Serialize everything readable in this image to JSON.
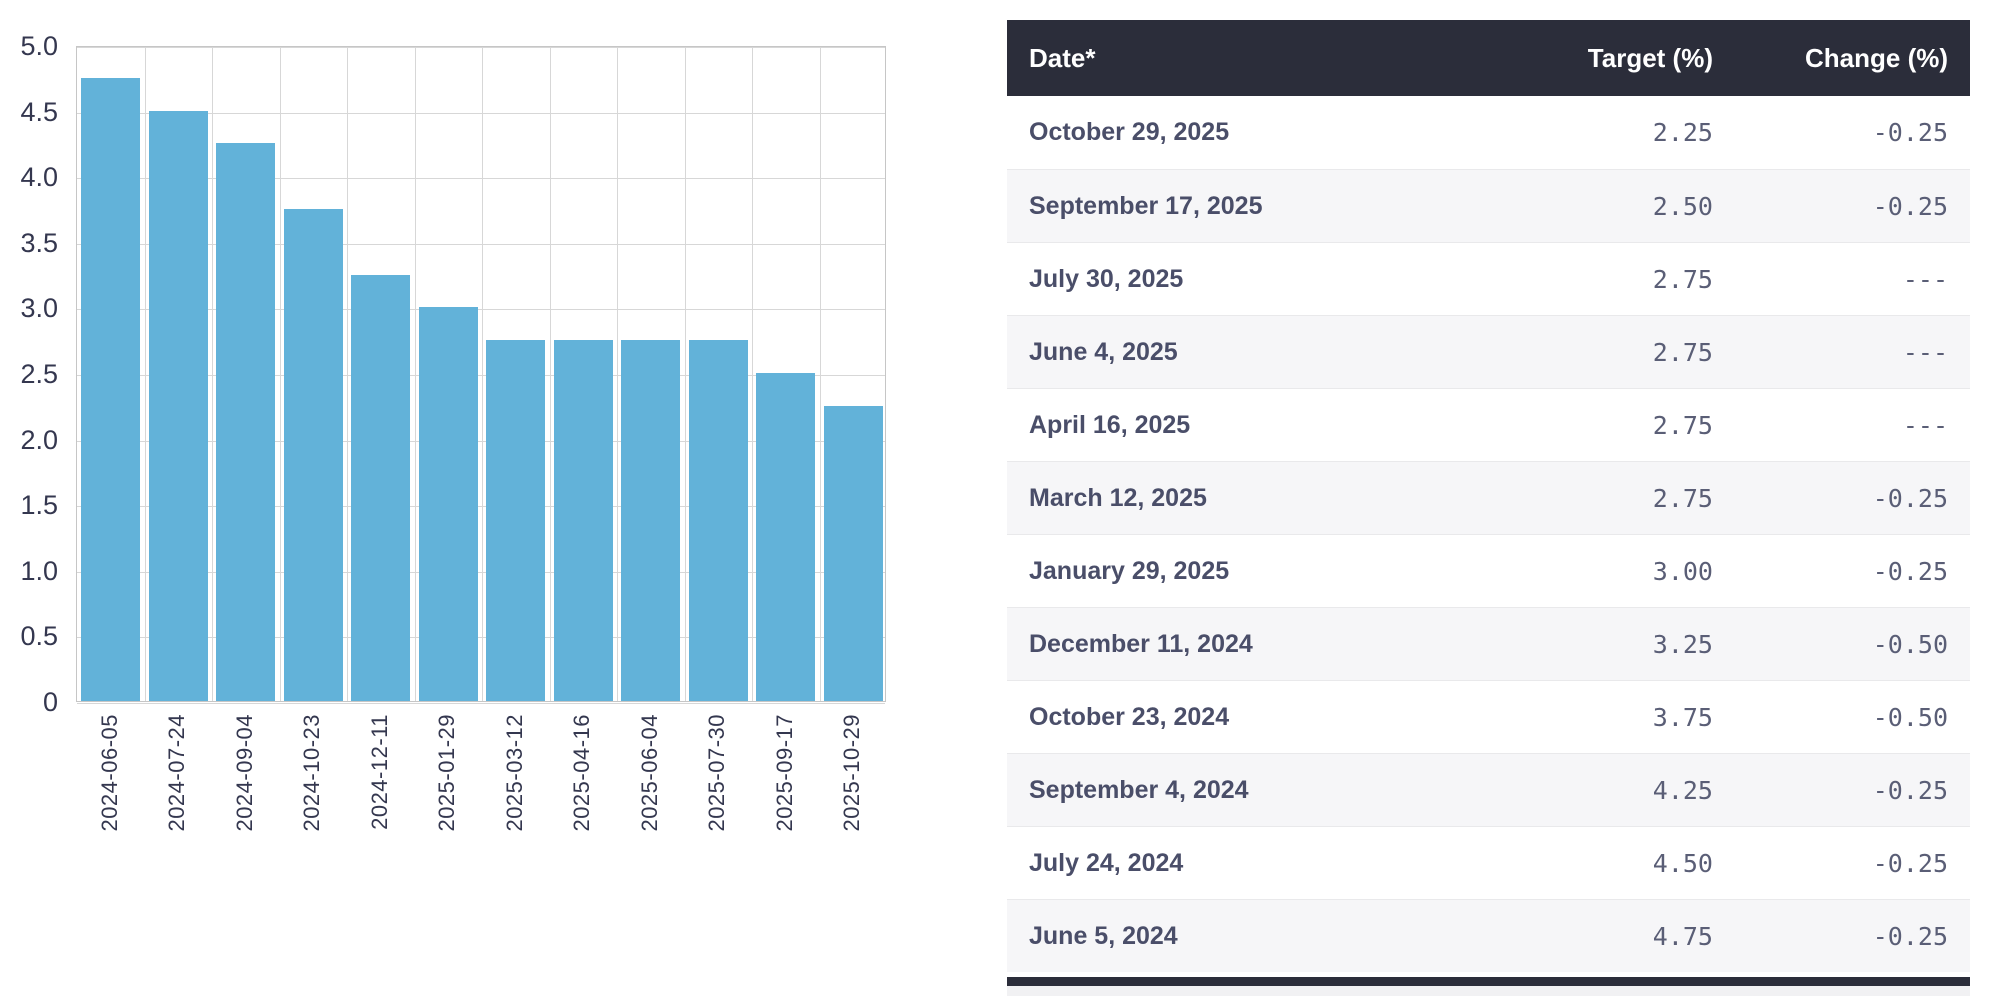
{
  "chart_data": {
    "type": "bar",
    "title": "",
    "xlabel": "",
    "ylabel": "",
    "categories": [
      "2024-06-05",
      "2024-07-24",
      "2024-09-04",
      "2024-10-23",
      "2024-12-11",
      "2025-01-29",
      "2025-03-12",
      "2025-04-16",
      "2025-06-04",
      "2025-07-30",
      "2025-09-17",
      "2025-10-29"
    ],
    "values": [
      4.75,
      4.5,
      4.25,
      3.75,
      3.25,
      3.0,
      2.75,
      2.75,
      2.75,
      2.75,
      2.5,
      2.25
    ],
    "ylim": [
      0,
      5
    ],
    "ytick_step": 0.5,
    "ytick_labels": [
      "5.0",
      "4.5",
      "4.0",
      "3.5",
      "3.0",
      "2.5",
      "2.0",
      "1.5",
      "1.0",
      "0.5",
      "0"
    ],
    "grid": true,
    "legend_position": "none",
    "bar_color": "#62b2d9"
  },
  "table": {
    "columns": [
      "Date*",
      "Target (%)",
      "Change (%)"
    ],
    "rows": [
      {
        "date": "October 29, 2025",
        "target": "2.25",
        "change": "-0.25"
      },
      {
        "date": "September 17, 2025",
        "target": "2.50",
        "change": "-0.25"
      },
      {
        "date": "July 30, 2025",
        "target": "2.75",
        "change": "---"
      },
      {
        "date": "June 4, 2025",
        "target": "2.75",
        "change": "---"
      },
      {
        "date": "April 16, 2025",
        "target": "2.75",
        "change": "---"
      },
      {
        "date": "March 12, 2025",
        "target": "2.75",
        "change": "-0.25"
      },
      {
        "date": "January 29, 2025",
        "target": "3.00",
        "change": "-0.25"
      },
      {
        "date": "December 11, 2024",
        "target": "3.25",
        "change": "-0.50"
      },
      {
        "date": "October 23, 2024",
        "target": "3.75",
        "change": "-0.50"
      },
      {
        "date": "September 4, 2024",
        "target": "4.25",
        "change": "-0.25"
      },
      {
        "date": "July 24, 2024",
        "target": "4.50",
        "change": "-0.25"
      },
      {
        "date": "June 5, 2024",
        "target": "4.75",
        "change": "-0.25"
      }
    ]
  },
  "colors": {
    "bar": "#62b2d9",
    "gridline": "#d7d7d7",
    "plot_border": "#c6c6c6",
    "axis_text": "#34374f",
    "table_header_bg": "#2b2d3a",
    "table_header_text": "#ffffff",
    "row_alt_bg": "#f6f6f8",
    "date_text": "#4a4e69",
    "number_text": "#5a5e76"
  }
}
